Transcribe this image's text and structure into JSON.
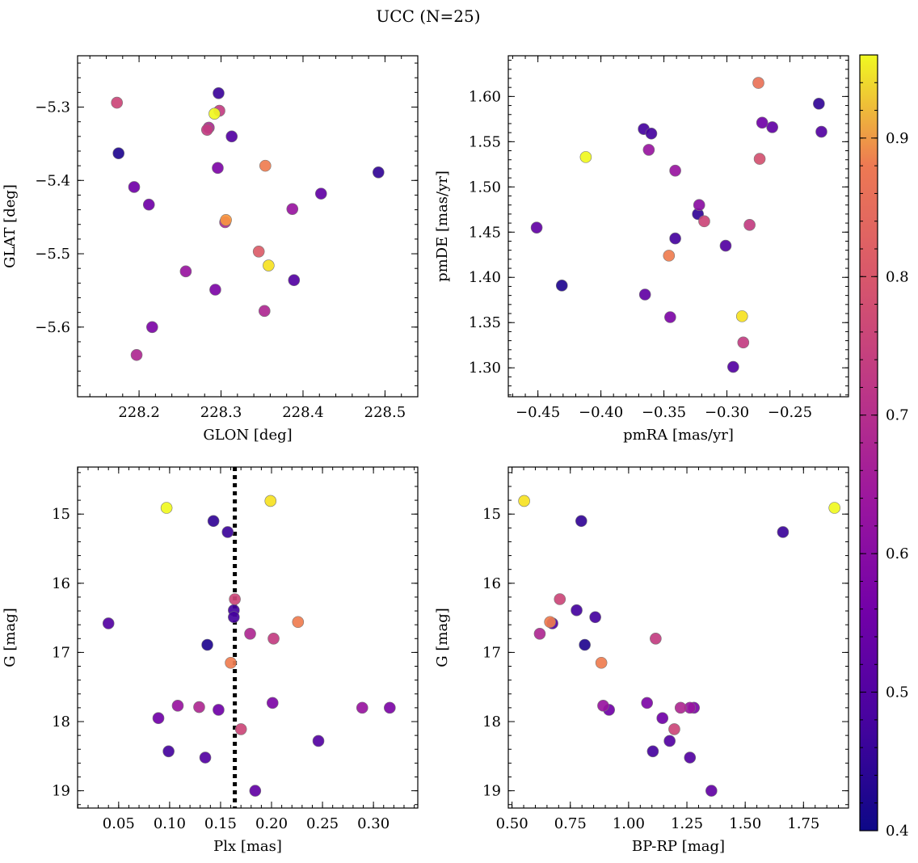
{
  "suptitle": "UCC (N=25)",
  "colorbar": {
    "colormap": "plasma",
    "range": [
      0.4,
      0.96
    ],
    "ticks": [
      "0.4",
      "0.5",
      "0.6",
      "0.7",
      "0.8",
      "0.9"
    ]
  },
  "chart_data": [
    {
      "type": "scatter",
      "xlabel": "GLON [deg]",
      "ylabel": "GLAT [deg]",
      "xlim": [
        228.125,
        228.54
      ],
      "ylim": [
        -5.695,
        -5.23
      ],
      "xticks": [
        "228.2",
        "228.3",
        "228.4",
        "228.5"
      ],
      "yticks": [
        "−5.3",
        "−5.4",
        "−5.5",
        "−5.6"
      ],
      "x": [
        228.173,
        228.297,
        228.298,
        228.285,
        228.283,
        228.313,
        228.175,
        228.296,
        228.354,
        228.194,
        228.492,
        228.212,
        228.422,
        228.387,
        228.306,
        228.305,
        228.346,
        228.358,
        228.257,
        228.389,
        228.293,
        228.353,
        228.216,
        228.197,
        228.292
      ],
      "y": [
        -5.294,
        -5.281,
        -5.305,
        -5.328,
        -5.331,
        -5.34,
        -5.363,
        -5.383,
        -5.38,
        -5.409,
        -5.389,
        -5.433,
        -5.418,
        -5.439,
        -5.454,
        -5.457,
        -5.497,
        -5.516,
        -5.524,
        -5.536,
        -5.549,
        -5.578,
        -5.6,
        -5.638,
        -5.309
      ],
      "c": [
        0.68,
        0.45,
        0.66,
        0.62,
        0.66,
        0.48,
        0.42,
        0.54,
        0.78,
        0.52,
        0.44,
        0.52,
        0.5,
        0.58,
        0.82,
        0.62,
        0.72,
        0.93,
        0.58,
        0.48,
        0.54,
        0.62,
        0.54,
        0.62,
        0.96
      ]
    },
    {
      "type": "scatter",
      "xlabel": "pmRA [mas/yr]",
      "ylabel": "pmDE [mas/yr]",
      "xlim": [
        -0.4735,
        -0.2035
      ],
      "ylim": [
        1.268,
        1.645
      ],
      "xticks": [
        "−0.45",
        "−0.40",
        "−0.35",
        "−0.30",
        "−0.25"
      ],
      "yticks": [
        "1.30",
        "1.35",
        "1.40",
        "1.45",
        "1.50",
        "1.55",
        "1.60"
      ],
      "x": [
        -0.275,
        -0.227,
        -0.272,
        -0.264,
        -0.366,
        -0.36,
        -0.225,
        -0.362,
        -0.412,
        -0.274,
        -0.341,
        -0.322,
        -0.323,
        -0.318,
        -0.282,
        -0.451,
        -0.341,
        -0.301,
        -0.346,
        -0.431,
        -0.365,
        -0.288,
        -0.345,
        -0.287,
        -0.295
      ],
      "y": [
        1.615,
        1.592,
        1.571,
        1.566,
        1.564,
        1.559,
        1.561,
        1.541,
        1.533,
        1.531,
        1.518,
        1.48,
        1.47,
        1.462,
        1.458,
        1.455,
        1.443,
        1.435,
        1.424,
        1.391,
        1.381,
        1.357,
        1.356,
        1.328,
        1.301
      ],
      "c": [
        0.76,
        0.44,
        0.52,
        0.5,
        0.46,
        0.46,
        0.48,
        0.58,
        0.96,
        0.7,
        0.58,
        0.56,
        0.44,
        0.68,
        0.66,
        0.5,
        0.46,
        0.48,
        0.78,
        0.42,
        0.5,
        0.93,
        0.54,
        0.66,
        0.48
      ]
    },
    {
      "type": "scatter",
      "xlabel": "Plx [mas]",
      "ylabel": "G [mag]",
      "xlim": [
        0.0097,
        0.3435
      ],
      "ylim": [
        19.25,
        14.32
      ],
      "yinvert": true,
      "vline": 0.164,
      "xticks": [
        "0.05",
        "0.10",
        "0.15",
        "0.20",
        "0.25",
        "0.30"
      ],
      "yticks": [
        "15",
        "16",
        "17",
        "18",
        "19"
      ],
      "x": [
        0.097,
        0.199,
        0.143,
        0.157,
        0.164,
        0.163,
        0.163,
        0.04,
        0.226,
        0.179,
        0.202,
        0.137,
        0.16,
        0.201,
        0.108,
        0.129,
        0.148,
        0.289,
        0.316,
        0.089,
        0.17,
        0.246,
        0.099,
        0.135,
        0.184
      ],
      "y": [
        14.91,
        14.81,
        15.1,
        15.26,
        16.23,
        16.39,
        16.49,
        16.58,
        16.56,
        16.73,
        16.8,
        16.89,
        17.15,
        17.73,
        17.77,
        17.79,
        17.83,
        17.8,
        17.8,
        17.95,
        18.11,
        18.28,
        18.43,
        18.52,
        19.0
      ],
      "c": [
        0.96,
        0.93,
        0.44,
        0.45,
        0.68,
        0.46,
        0.46,
        0.48,
        0.78,
        0.62,
        0.66,
        0.42,
        0.78,
        0.54,
        0.58,
        0.62,
        0.52,
        0.58,
        0.54,
        0.52,
        0.68,
        0.48,
        0.46,
        0.48,
        0.5
      ]
    },
    {
      "type": "scatter",
      "xlabel": "BP-RP [mag]",
      "ylabel": "G [mag]",
      "xlim": [
        0.484,
        1.943
      ],
      "ylim": [
        19.25,
        14.32
      ],
      "yinvert": true,
      "xticks": [
        "0.50",
        "0.75",
        "1.00",
        "1.25",
        "1.50",
        "1.75"
      ],
      "yticks": [
        "15",
        "16",
        "17",
        "18",
        "19"
      ],
      "x": [
        0.552,
        1.883,
        0.797,
        1.662,
        0.705,
        0.777,
        0.857,
        0.673,
        0.663,
        0.619,
        1.116,
        0.812,
        0.883,
        1.079,
        0.891,
        0.916,
        1.223,
        1.263,
        1.28,
        1.145,
        1.196,
        1.176,
        1.104,
        1.263,
        1.355
      ],
      "y": [
        14.81,
        14.91,
        15.1,
        15.26,
        16.23,
        16.39,
        16.49,
        16.58,
        16.56,
        16.73,
        16.8,
        16.89,
        17.15,
        17.73,
        17.77,
        17.83,
        17.8,
        17.8,
        17.8,
        17.95,
        18.11,
        18.28,
        18.43,
        18.52,
        19.0
      ],
      "c": [
        0.93,
        0.96,
        0.44,
        0.45,
        0.68,
        0.46,
        0.46,
        0.48,
        0.78,
        0.62,
        0.66,
        0.42,
        0.78,
        0.54,
        0.58,
        0.52,
        0.62,
        0.58,
        0.54,
        0.52,
        0.68,
        0.48,
        0.46,
        0.48,
        0.5
      ]
    }
  ]
}
